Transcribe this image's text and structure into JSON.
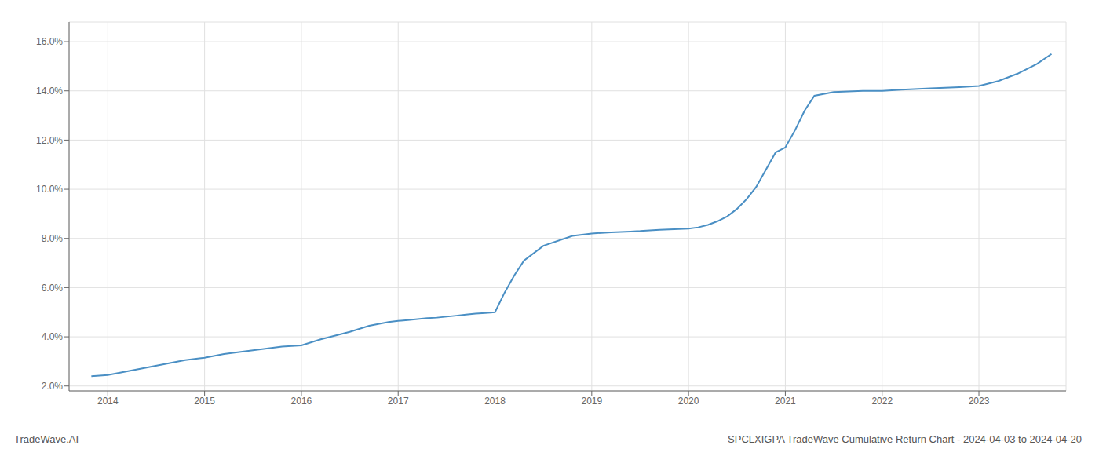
{
  "chart_data": {
    "type": "line",
    "x": [
      2013.83,
      2014.0,
      2014.2,
      2014.4,
      2014.6,
      2014.8,
      2015.0,
      2015.2,
      2015.5,
      2015.8,
      2016.0,
      2016.2,
      2016.5,
      2016.7,
      2016.9,
      2017.0,
      2017.1,
      2017.2,
      2017.3,
      2017.4,
      2017.5,
      2017.6,
      2017.7,
      2017.8,
      2017.9,
      2018.0,
      2018.1,
      2018.2,
      2018.3,
      2018.5,
      2018.8,
      2019.0,
      2019.2,
      2019.4,
      2019.5,
      2019.6,
      2019.7,
      2019.8,
      2019.9,
      2020.0,
      2020.1,
      2020.2,
      2020.3,
      2020.4,
      2020.5,
      2020.6,
      2020.7,
      2020.8,
      2020.9,
      2021.0,
      2021.1,
      2021.2,
      2021.3,
      2021.5,
      2021.8,
      2022.0,
      2022.2,
      2022.5,
      2022.8,
      2023.0,
      2023.2,
      2023.4,
      2023.6,
      2023.75
    ],
    "values": [
      2.4,
      2.45,
      2.6,
      2.75,
      2.9,
      3.05,
      3.15,
      3.3,
      3.45,
      3.6,
      3.65,
      3.9,
      4.2,
      4.45,
      4.6,
      4.65,
      4.68,
      4.72,
      4.76,
      4.78,
      4.82,
      4.86,
      4.9,
      4.94,
      4.97,
      5.0,
      5.8,
      6.5,
      7.1,
      7.7,
      8.1,
      8.2,
      8.25,
      8.28,
      8.3,
      8.33,
      8.35,
      8.37,
      8.38,
      8.4,
      8.45,
      8.55,
      8.7,
      8.9,
      9.2,
      9.6,
      10.1,
      10.8,
      11.5,
      11.7,
      12.4,
      13.2,
      13.8,
      13.95,
      14.0,
      14.0,
      14.05,
      14.1,
      14.15,
      14.2,
      14.4,
      14.7,
      15.1,
      15.5
    ],
    "color": "#4a8fc4",
    "xlim": [
      2013.6,
      2023.9
    ],
    "xticks": [
      2014,
      2015,
      2016,
      2017,
      2018,
      2019,
      2020,
      2021,
      2022,
      2023
    ],
    "ylim": [
      1.8,
      16.8
    ],
    "yticks": [
      {
        "value": 2.0,
        "label": "2.0%"
      },
      {
        "value": 4.0,
        "label": "4.0%"
      },
      {
        "value": 6.0,
        "label": "6.0%"
      },
      {
        "value": 8.0,
        "label": "8.0%"
      },
      {
        "value": 10.0,
        "label": "10.0%"
      },
      {
        "value": 12.0,
        "label": "12.0%"
      },
      {
        "value": 14.0,
        "label": "14.0%"
      },
      {
        "value": 16.0,
        "label": "16.0%"
      }
    ],
    "grid": true,
    "annotations": [
      "TradeWave.AI",
      "SPCLXIGPA TradeWave Cumulative Return Chart - 2024-04-03 to 2024-04-20"
    ]
  }
}
